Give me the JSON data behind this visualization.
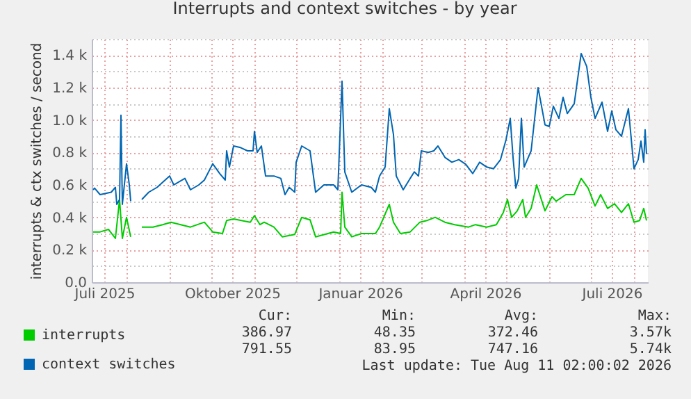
{
  "chart_data": {
    "type": "line",
    "title": "Interrupts and context switches - by year",
    "ylabel": "interrupts & ctx switches / second",
    "xlim": [
      "2025-07-07",
      "2026-08-11"
    ],
    "xticks": [
      {
        "value": "2025-07-16",
        "label": "Juli 2025"
      },
      {
        "value": "2025-08-01",
        "label": null
      },
      {
        "value": "2025-09-01",
        "label": null
      },
      {
        "value": "2025-10-01",
        "label": null
      },
      {
        "value": "2025-10-16",
        "label": "Oktober 2025"
      },
      {
        "value": "2025-11-01",
        "label": null
      },
      {
        "value": "2025-12-01",
        "label": null
      },
      {
        "value": "2026-01-01",
        "label": null
      },
      {
        "value": "2026-01-16",
        "label": "Januar 2026"
      },
      {
        "value": "2026-02-01",
        "label": null
      },
      {
        "value": "2026-03-01",
        "label": null
      },
      {
        "value": "2026-04-01",
        "label": null
      },
      {
        "value": "2026-04-16",
        "label": "April 2026"
      },
      {
        "value": "2026-05-01",
        "label": null
      },
      {
        "value": "2026-06-01",
        "label": null
      },
      {
        "value": "2026-07-01",
        "label": null
      },
      {
        "value": "2026-07-16",
        "label": "Juli 2026"
      },
      {
        "value": "2026-08-01",
        "label": null
      }
    ],
    "ylim": [
      0,
      1500
    ],
    "yticks": [
      {
        "value": 0,
        "label": "0.0"
      },
      {
        "value": 100,
        "label": null
      },
      {
        "value": 200,
        "label": "0.2 k"
      },
      {
        "value": 300,
        "label": null
      },
      {
        "value": 400,
        "label": "0.4 k"
      },
      {
        "value": 500,
        "label": null
      },
      {
        "value": 600,
        "label": "0.6 k"
      },
      {
        "value": 700,
        "label": null
      },
      {
        "value": 800,
        "label": "0.8 k"
      },
      {
        "value": 900,
        "label": null
      },
      {
        "value": 1000,
        "label": "1.0 k"
      },
      {
        "value": 1100,
        "label": null
      },
      {
        "value": 1200,
        "label": "1.2 k"
      },
      {
        "value": 1300,
        "label": null
      },
      {
        "value": 1400,
        "label": "1.4 k"
      },
      {
        "value": 1500,
        "label": null
      }
    ],
    "grid": true,
    "legend": "bottom",
    "series": [
      {
        "name": "interrupts",
        "color": "#00cc00",
        "x": [
          "2025-07-08",
          "2025-07-13",
          "2025-07-19",
          "2025-07-24",
          "2025-07-27",
          "2025-07-29",
          "2025-08-01",
          "2025-08-04",
          "2025-08-08",
          "2025-08-12",
          "2025-08-20",
          "2025-08-27",
          "2025-09-02",
          "2025-09-09",
          "2025-09-16",
          "2025-09-26",
          "2025-10-02",
          "2025-10-09",
          "2025-10-12",
          "2025-10-17",
          "2025-10-29",
          "2025-11-01",
          "2025-11-05",
          "2025-11-08",
          "2025-11-15",
          "2025-11-21",
          "2025-11-30",
          "2025-12-05",
          "2025-12-11",
          "2025-12-15",
          "2025-12-28",
          "2026-01-02",
          "2026-01-03",
          "2026-01-05",
          "2026-01-10",
          "2026-01-17",
          "2026-01-27",
          "2026-01-30",
          "2026-02-06",
          "2026-02-09",
          "2026-02-14",
          "2026-02-21",
          "2026-02-28",
          "2026-03-05",
          "2026-03-11",
          "2026-03-18",
          "2026-03-25",
          "2026-04-04",
          "2026-04-09",
          "2026-04-17",
          "2026-04-24",
          "2026-04-29",
          "2026-05-02",
          "2026-05-05",
          "2026-05-09",
          "2026-05-13",
          "2026-05-15",
          "2026-05-19",
          "2026-05-23",
          "2026-05-29",
          "2026-06-03",
          "2026-06-06",
          "2026-06-13",
          "2026-06-19",
          "2026-06-24",
          "2026-06-29",
          "2026-07-04",
          "2026-07-08",
          "2026-07-13",
          "2026-07-18",
          "2026-07-23",
          "2026-07-28",
          "2026-08-01",
          "2026-08-05",
          "2026-08-08",
          "2026-08-10"
        ],
        "values": [
          310,
          310,
          326,
          270,
          510,
          270,
          400,
          280,
          null,
          340,
          340,
          355,
          370,
          355,
          340,
          370,
          310,
          300,
          380,
          390,
          370,
          410,
          355,
          370,
          340,
          280,
          295,
          400,
          385,
          280,
          310,
          300,
          555,
          340,
          280,
          300,
          300,
          340,
          480,
          370,
          300,
          310,
          370,
          380,
          400,
          370,
          355,
          340,
          355,
          340,
          355,
          430,
          510,
          400,
          440,
          510,
          400,
          455,
          600,
          440,
          527,
          500,
          540,
          540,
          640,
          580,
          470,
          540,
          455,
          484,
          430,
          484,
          370,
          380,
          455,
          380
        ]
      },
      {
        "name": "context switches",
        "color": "#0066b3",
        "x": [
          "2025-07-08",
          "2025-07-09",
          "2025-07-13",
          "2025-07-21",
          "2025-07-24",
          "2025-07-25",
          "2025-07-27",
          "2025-07-28",
          "2025-07-29",
          "2025-08-01",
          "2025-08-03",
          "2025-08-04",
          "2025-08-08",
          "2025-08-12",
          "2025-08-17",
          "2025-08-23",
          "2025-09-01",
          "2025-09-04",
          "2025-09-12",
          "2025-09-16",
          "2025-09-22",
          "2025-09-26",
          "2025-10-02",
          "2025-10-07",
          "2025-10-11",
          "2025-10-12",
          "2025-10-14",
          "2025-10-17",
          "2025-10-22",
          "2025-10-27",
          "2025-10-31",
          "2025-11-01",
          "2025-11-03",
          "2025-11-06",
          "2025-11-09",
          "2025-11-15",
          "2025-11-20",
          "2025-11-23",
          "2025-11-26",
          "2025-11-30",
          "2025-12-01",
          "2025-12-05",
          "2025-12-11",
          "2025-12-15",
          "2025-12-21",
          "2025-12-28",
          "2025-12-31",
          "2026-01-03",
          "2026-01-05",
          "2026-01-10",
          "2026-01-17",
          "2026-01-24",
          "2026-01-27",
          "2026-01-30",
          "2026-02-03",
          "2026-02-06",
          "2026-02-09",
          "2026-02-11",
          "2026-02-16",
          "2026-02-21",
          "2026-02-24",
          "2026-02-27",
          "2026-03-01",
          "2026-03-06",
          "2026-03-10",
          "2026-03-13",
          "2026-03-18",
          "2026-03-23",
          "2026-03-28",
          "2026-04-02",
          "2026-04-07",
          "2026-04-12",
          "2026-04-17",
          "2026-04-22",
          "2026-04-27",
          "2026-05-01",
          "2026-05-04",
          "2026-05-06",
          "2026-05-08",
          "2026-05-10",
          "2026-05-12",
          "2026-05-14",
          "2026-05-19",
          "2026-05-24",
          "2026-05-29",
          "2026-06-01",
          "2026-06-04",
          "2026-06-08",
          "2026-06-11",
          "2026-06-14",
          "2026-06-19",
          "2026-06-24",
          "2026-06-28",
          "2026-07-01",
          "2026-07-04",
          "2026-07-09",
          "2026-07-13",
          "2026-07-16",
          "2026-07-19",
          "2026-07-23",
          "2026-07-28",
          "2026-08-01",
          "2026-08-04",
          "2026-08-06",
          "2026-08-08",
          "2026-08-09",
          "2026-08-10"
        ],
        "values": [
          570,
          580,
          540,
          555,
          585,
          480,
          510,
          1030,
          480,
          730,
          600,
          500,
          null,
          510,
          555,
          585,
          655,
          600,
          640,
          570,
          600,
          630,
          730,
          670,
          630,
          810,
          710,
          840,
          830,
          810,
          810,
          930,
          800,
          840,
          655,
          655,
          640,
          540,
          585,
          555,
          740,
          840,
          810,
          555,
          600,
          600,
          570,
          1240,
          680,
          555,
          600,
          585,
          555,
          655,
          710,
          1070,
          910,
          655,
          570,
          640,
          680,
          655,
          810,
          800,
          810,
          840,
          770,
          740,
          756,
          727,
          670,
          740,
          710,
          700,
          756,
          880,
          1010,
          770,
          580,
          640,
          1010,
          710,
          810,
          1200,
          970,
          960,
          1085,
          1010,
          1140,
          1040,
          1100,
          1410,
          1330,
          1140,
          1010,
          1110,
          930,
          1056,
          940,
          900,
          1070,
          700,
          756,
          870,
          740,
          940,
          790
        ]
      }
    ],
    "annotations": [
      "Cur:",
      "Min:",
      "Avg:",
      "Max:",
      "386.97",
      "48.35",
      "372.46",
      "3.57k",
      "791.55",
      "83.95",
      "747.16",
      "5.74k",
      "Last update: Tue Aug 11 02:00:02 2026"
    ]
  }
}
